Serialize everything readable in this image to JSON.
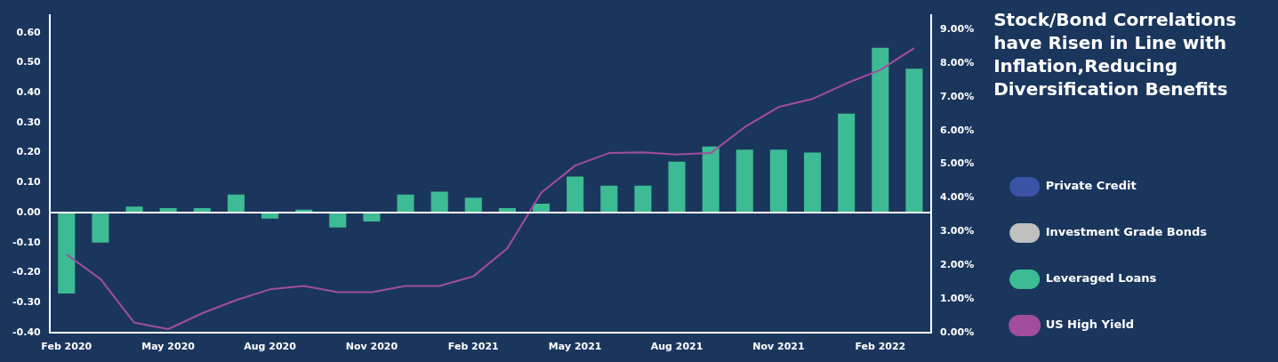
{
  "chart_data": {
    "type": "bar",
    "title": "Stock/Bond Correlations have Risen in Line with Inflation,Reducing Diversification Benefits",
    "categories": [
      "Feb 2020",
      null,
      null,
      "May 2020",
      null,
      null,
      "Aug 2020",
      null,
      null,
      "Nov 2020",
      null,
      null,
      "Feb 2021",
      null,
      null,
      "May 2021",
      null,
      null,
      "Aug 2021",
      null,
      null,
      "Nov 2021",
      null,
      null,
      "Feb 2022",
      null
    ],
    "series": [
      {
        "name": "Private Credit",
        "color": "#3a53a4",
        "values": [
          null,
          null,
          null,
          null,
          null,
          null,
          null,
          null,
          null,
          null,
          null,
          null,
          null,
          null,
          null,
          null,
          null,
          null,
          null,
          null,
          null,
          null,
          null,
          null,
          null,
          null
        ]
      },
      {
        "name": "Investment Grade Bonds",
        "color": "#c0c0c0",
        "values": [
          null,
          null,
          null,
          null,
          null,
          null,
          null,
          null,
          null,
          null,
          null,
          null,
          null,
          null,
          null,
          null,
          null,
          null,
          null,
          null,
          null,
          null,
          null,
          null,
          null,
          null
        ]
      },
      {
        "name": "Leveraged Loans",
        "color": "#3dbb94",
        "values": [
          -0.27,
          -0.1,
          0.02,
          0.015,
          0.015,
          0.06,
          -0.02,
          0.01,
          -0.05,
          -0.03,
          0.06,
          0.07,
          0.05,
          0.015,
          0.03,
          0.12,
          0.09,
          0.09,
          0.17,
          0.22,
          0.21,
          0.21,
          0.2,
          0.33,
          0.55,
          0.48
        ]
      },
      {
        "name": "US High Yield",
        "color": "#a24d9e",
        "type": "line",
        "axis": "y2",
        "values": [
          2.32,
          1.59,
          0.29,
          0.1,
          0.57,
          0.96,
          1.28,
          1.38,
          1.2,
          1.2,
          1.38,
          1.38,
          1.67,
          2.5,
          4.15,
          4.96,
          5.33,
          5.35,
          5.29,
          5.33,
          6.1,
          6.7,
          6.94,
          7.4,
          7.8,
          8.45
        ]
      }
    ],
    "ylim": [
      -0.4,
      0.66
    ],
    "yticks": [
      {
        "value": -0.4,
        "label": "-0.40"
      },
      {
        "value": -0.3,
        "label": "-0.30"
      },
      {
        "value": -0.2,
        "label": "-0.20"
      },
      {
        "value": -0.1,
        "label": "-0.10"
      },
      {
        "value": 0,
        "label": "0.00"
      },
      {
        "value": 0.1,
        "label": "0.10"
      },
      {
        "value": 0.2,
        "label": "0.20"
      },
      {
        "value": 0.3,
        "label": "0.30"
      },
      {
        "value": 0.4,
        "label": "0.40"
      },
      {
        "value": 0.5,
        "label": "0.50"
      },
      {
        "value": 0.6,
        "label": "0.60"
      }
    ],
    "y2lim": [
      0,
      9.44
    ],
    "y2ticks": [
      {
        "value": 0,
        "label": "0.00%"
      },
      {
        "value": 1,
        "label": "1.00%"
      },
      {
        "value": 2,
        "label": "2.00%"
      },
      {
        "value": 3,
        "label": "3.00%"
      },
      {
        "value": 4,
        "label": "4.00%"
      },
      {
        "value": 5,
        "label": "5.00%"
      },
      {
        "value": 6,
        "label": "6.00%"
      },
      {
        "value": 7,
        "label": "7.00%"
      },
      {
        "value": 8,
        "label": "8.00%"
      },
      {
        "value": 9,
        "label": "9.00%"
      }
    ],
    "ref_lines": [
      {
        "axis": "y",
        "value": 0,
        "color": "#ffffff"
      }
    ],
    "grid": false,
    "legend": "right"
  }
}
